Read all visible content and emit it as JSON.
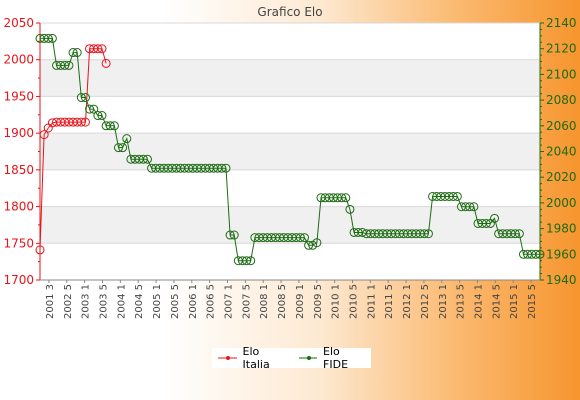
{
  "chart_data": {
    "type": "line",
    "title": "Grafico Elo",
    "y_left": {
      "min": 1700,
      "max": 2050,
      "step": 50,
      "ticks": [
        "1700",
        "1750",
        "1800",
        "1850",
        "1900",
        "1950",
        "2000",
        "2050"
      ]
    },
    "y_right": {
      "min": 1940,
      "max": 2140,
      "step": 20,
      "ticks": [
        "1940",
        "1960",
        "1980",
        "2000",
        "2020",
        "2040",
        "2060",
        "2080",
        "2100",
        "2120",
        "2140"
      ]
    },
    "x_tick_labels": [
      "2001 3",
      "2002 5",
      "2003 1",
      "2003 5",
      "2004 1",
      "2004 5",
      "2005 1",
      "2005 5",
      "2006 1",
      "2006 5",
      "2007 1",
      "2007 5",
      "2008 1",
      "2008 5",
      "2009 1",
      "2009 5",
      "2010 1",
      "2010 5",
      "2011 1",
      "2011 5",
      "2012 1",
      "2012 5",
      "2013 1",
      "2013 5",
      "2014 1",
      "2014 5",
      "2015 1",
      "2015 5"
    ],
    "grid": true,
    "legend_position": "bottom",
    "series": [
      {
        "name": "Elo Italia",
        "axis": "left",
        "color": "#e8141b",
        "values": [
          1741,
          1898,
          1907,
          1914,
          1915,
          1915,
          1915,
          1915,
          1915,
          1915,
          1915,
          1915,
          2015,
          2015,
          2015,
          2015,
          1995
        ]
      },
      {
        "name": "Elo FIDE",
        "axis": "right",
        "color": "#1c6b12",
        "values": [
          2128,
          2128,
          2128,
          2128,
          2107,
          2107,
          2107,
          2107,
          2117,
          2117,
          2082,
          2082,
          2073,
          2073,
          2068,
          2068,
          2060,
          2060,
          2060,
          2043,
          2043,
          2050,
          2034,
          2034,
          2034,
          2034,
          2034,
          2027,
          2027,
          2027,
          2027,
          2027,
          2027,
          2027,
          2027,
          2027,
          2027,
          2027,
          2027,
          2027,
          2027,
          2027,
          2027,
          2027,
          2027,
          2027,
          1975,
          1975,
          1955,
          1955,
          1955,
          1955,
          1973,
          1973,
          1973,
          1973,
          1973,
          1973,
          1973,
          1973,
          1973,
          1973,
          1973,
          1973,
          1973,
          1967,
          1967,
          1969,
          2004,
          2004,
          2004,
          2004,
          2004,
          2004,
          2004,
          1995,
          1977,
          1977,
          1977,
          1976,
          1976,
          1976,
          1976,
          1976,
          1976,
          1976,
          1976,
          1976,
          1976,
          1976,
          1976,
          1976,
          1976,
          1976,
          1976,
          2005,
          2005,
          2005,
          2005,
          2005,
          2005,
          2005,
          1997,
          1997,
          1997,
          1997,
          1984,
          1984,
          1984,
          1984,
          1988,
          1976,
          1976,
          1976,
          1976,
          1976,
          1976,
          1960,
          1960,
          1960,
          1960,
          1960
        ]
      }
    ]
  }
}
